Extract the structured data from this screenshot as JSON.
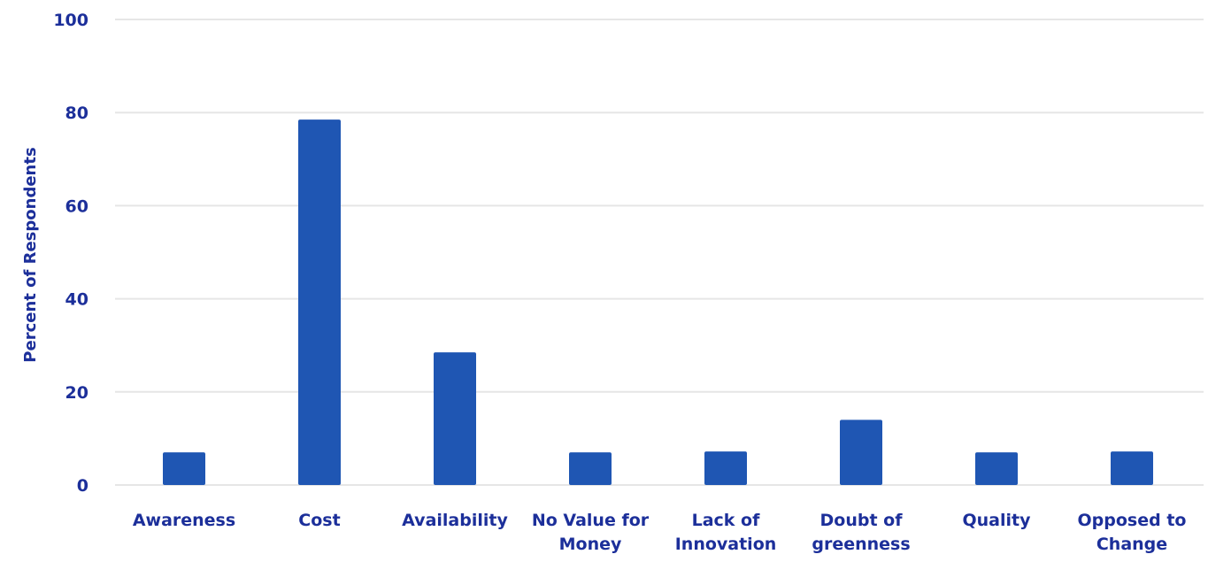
{
  "chart_data": {
    "type": "bar",
    "title": "",
    "xlabel": "",
    "ylabel": "Percent of Respondents",
    "ylim": [
      0,
      100
    ],
    "yticks": [
      0,
      20,
      40,
      60,
      80,
      100
    ],
    "grid": "horizontal",
    "legend": "none",
    "categories": [
      [
        "Awareness"
      ],
      [
        "Cost"
      ],
      [
        "Availability"
      ],
      [
        "No Value for",
        "Money"
      ],
      [
        "Lack of",
        "Innovation"
      ],
      [
        "Doubt of",
        "greenness"
      ],
      [
        "Quality"
      ],
      [
        "Opposed to",
        "Change"
      ]
    ],
    "values": [
      7,
      78.5,
      28.5,
      7,
      7.2,
      14,
      7,
      7.2
    ]
  },
  "colors": {
    "bar": "#1f56b3",
    "text": "#1c2f9a",
    "grid": "#e6e6e6"
  }
}
